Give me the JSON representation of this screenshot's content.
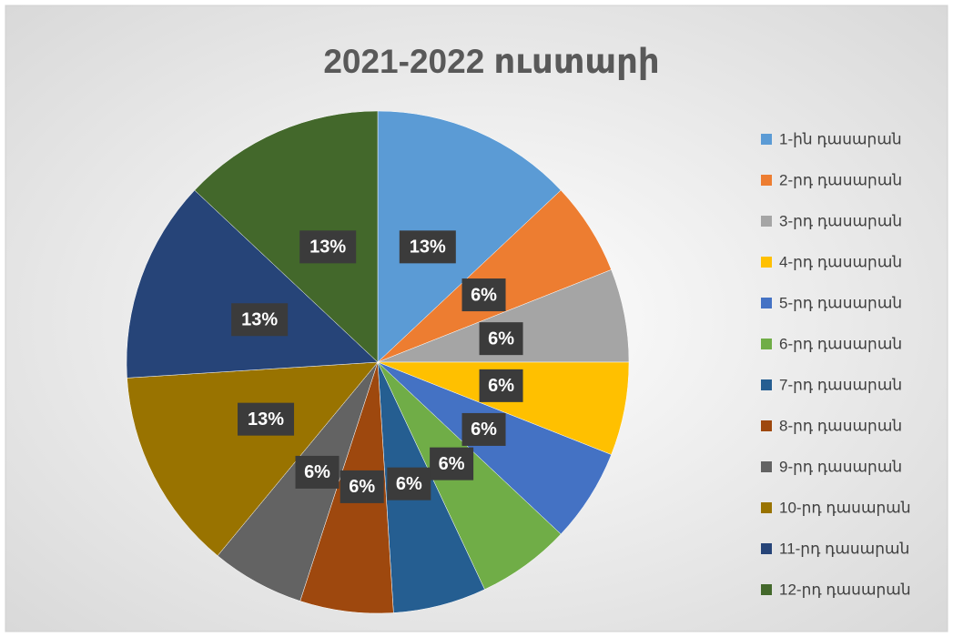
{
  "chart_data": {
    "type": "pie",
    "title": "2021-2022 ուստարի",
    "categories": [
      "1-ին դասարան",
      "2-րդ դասարան",
      "3-րդ դասարան",
      "4-րդ դասարան",
      "5-րդ դասարան",
      "6-րդ դասարան",
      "7-րդ դասարան",
      "8-րդ դասարան",
      "9-րդ դասարան",
      "10-րդ դասարան",
      "11-րդ դասարան",
      "12-րդ դասարան"
    ],
    "values": [
      13,
      6,
      6,
      6,
      6,
      6,
      6,
      6,
      6,
      13,
      13,
      13
    ],
    "value_labels": [
      "13%",
      "6%",
      "6%",
      "6%",
      "6%",
      "6%",
      "6%",
      "6%",
      "6%",
      "13%",
      "13%",
      "13%"
    ],
    "colors": [
      "#5b9bd5",
      "#ed7d31",
      "#a5a5a5",
      "#ffc000",
      "#4472c4",
      "#70ad47",
      "#255e91",
      "#9e480e",
      "#636363",
      "#997300",
      "#264478",
      "#43682b"
    ],
    "legend": "right"
  }
}
